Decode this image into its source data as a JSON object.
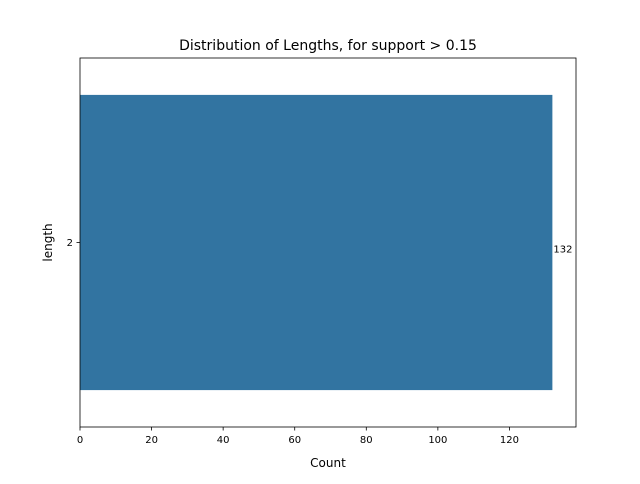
{
  "chart_data": {
    "type": "bar",
    "orientation": "horizontal",
    "title": "Distribution of Lengths, for support > 0.15",
    "xlabel": "Count",
    "ylabel": "length",
    "categories": [
      "2"
    ],
    "values": [
      132
    ],
    "data_labels": [
      "132"
    ],
    "xlim": [
      0,
      138.6
    ],
    "xticks": [
      0,
      20,
      40,
      60,
      80,
      100,
      120
    ],
    "grid": false,
    "bar_color": "#3274a1"
  }
}
